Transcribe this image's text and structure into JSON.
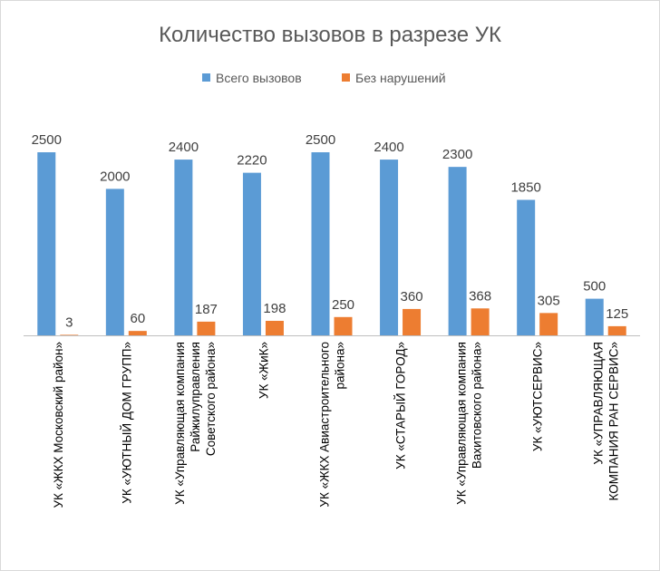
{
  "chart_data": {
    "type": "bar",
    "title": "Количество вызовов в разрезе УК",
    "legend_position": "top",
    "grid": false,
    "ylim": [
      0,
      2500
    ],
    "categories": [
      [
        "УК «ЖКХ Московский район»"
      ],
      [
        "УК «УЮТНЫЙ ДОМ ГРУПП»"
      ],
      [
        "УК «Управляющая компания",
        "Райжилуправления",
        "Советского района»"
      ],
      [
        "УК «ЖиК»"
      ],
      [
        "УК «ЖКХ Авиастроительного",
        "района»"
      ],
      [
        "УК «СТАРЫЙ ГОРОД»"
      ],
      [
        "УК «Управляющая компания",
        "Вахитовского района»"
      ],
      [
        "УК «УЮТСЕРВИС»"
      ],
      [
        "УК «УПРАВЛЯЮЩАЯ",
        "КОМПАНИЯ РАН СЕРВИС»"
      ]
    ],
    "series": [
      {
        "name": "Всего вызовов",
        "color": "#5b9bd5",
        "values": [
          2500,
          2000,
          2400,
          2220,
          2500,
          2400,
          2300,
          1850,
          500
        ]
      },
      {
        "name": "Без нарушений",
        "color": "#ed7d31",
        "values": [
          3,
          60,
          187,
          198,
          250,
          360,
          368,
          305,
          125
        ]
      }
    ]
  }
}
